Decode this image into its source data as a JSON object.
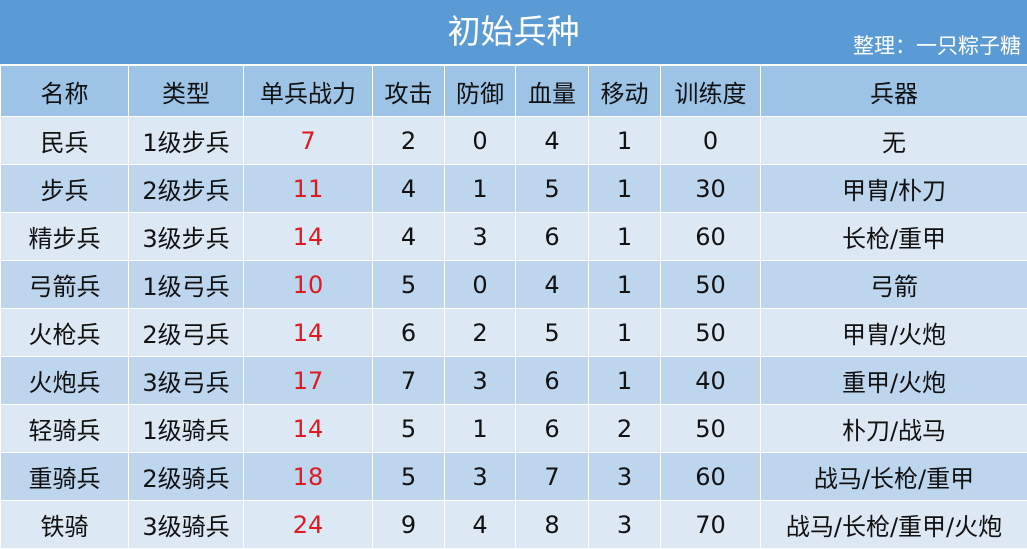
{
  "title": "初始兵种",
  "credit": "整理：一只粽子糖",
  "headers": [
    "名称",
    "类型",
    "单兵战力",
    "攻击",
    "防御",
    "血量",
    "移动",
    "训练度",
    "兵器"
  ],
  "accent_colors": {
    "title_bg": "#5b9bd5",
    "header_bg": "#9dc3e6",
    "row_light": "#dce8f4",
    "row_dark": "#bdd6ee",
    "power_text": "#e0191e"
  },
  "rows": [
    [
      "民兵",
      "1级步兵",
      "7",
      "2",
      "0",
      "4",
      "1",
      "0",
      "无"
    ],
    [
      "步兵",
      "2级步兵",
      "11",
      "4",
      "1",
      "5",
      "1",
      "30",
      "甲胄/朴刀"
    ],
    [
      "精步兵",
      "3级步兵",
      "14",
      "4",
      "3",
      "6",
      "1",
      "60",
      "长枪/重甲"
    ],
    [
      "弓箭兵",
      "1级弓兵",
      "10",
      "5",
      "0",
      "4",
      "1",
      "50",
      "弓箭"
    ],
    [
      "火枪兵",
      "2级弓兵",
      "14",
      "6",
      "2",
      "5",
      "1",
      "50",
      "甲胄/火炮"
    ],
    [
      "火炮兵",
      "3级弓兵",
      "17",
      "7",
      "3",
      "6",
      "1",
      "40",
      "重甲/火炮"
    ],
    [
      "轻骑兵",
      "1级骑兵",
      "14",
      "5",
      "1",
      "6",
      "2",
      "50",
      "朴刀/战马"
    ],
    [
      "重骑兵",
      "2级骑兵",
      "18",
      "5",
      "3",
      "7",
      "3",
      "60",
      "战马/长枪/重甲"
    ],
    [
      "铁骑",
      "3级骑兵",
      "24",
      "9",
      "4",
      "8",
      "3",
      "70",
      "战马/长枪/重甲/火炮"
    ]
  ]
}
